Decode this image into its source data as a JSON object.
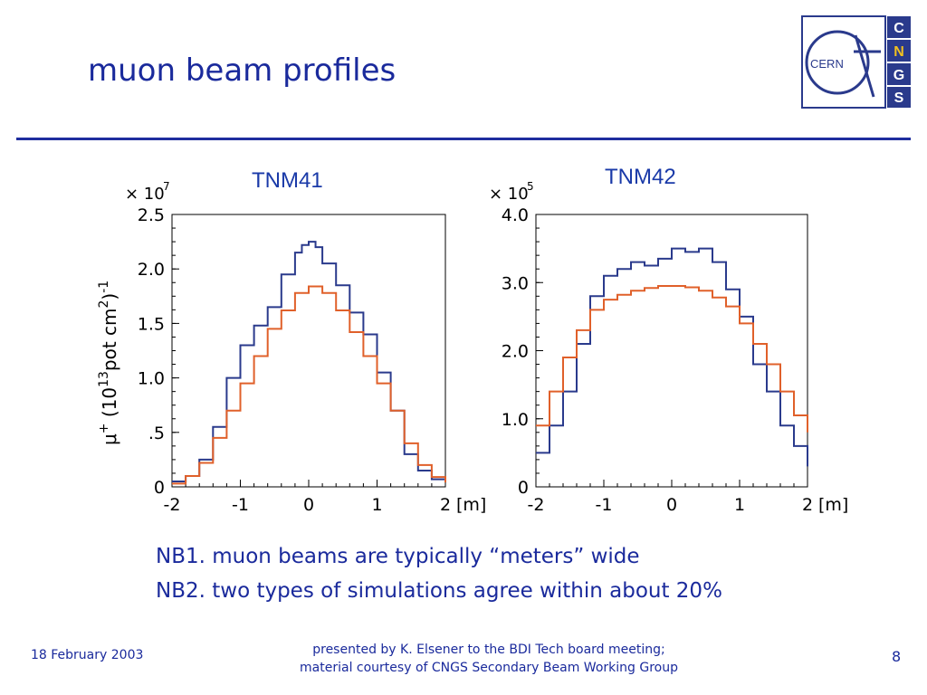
{
  "slide": {
    "title": "muon beam profiles",
    "notes": [
      "NB1.  muon beams are typically “meters” wide",
      "NB2. two types of simulations agree within about 20%"
    ],
    "footer_date": "18 February 2003",
    "footer_center_line1": "presented by K. Elsener to the BDI Tech board meeting;",
    "footer_center_line2": "material courtesy of CNGS Secondary Beam Working Group",
    "page_number": "8",
    "logo": {
      "text": "CERN",
      "letters": [
        "C",
        "N",
        "G",
        "S"
      ]
    },
    "colors": {
      "title": "#1a2a9c",
      "series_a": "#2a3a8c",
      "series_b": "#e0602a"
    }
  },
  "chart_data": [
    {
      "type": "line",
      "title": "TNM41",
      "multiplier_base": "× 10",
      "multiplier_exp": "7",
      "ylabel_prefix": "μ",
      "ylabel_sup_plus": "+",
      "ylabel_main": " (10",
      "ylabel_sup13": "13",
      "ylabel_rest": "pot cm",
      "ylabel_sup2": "2",
      "ylabel_end": ")",
      "ylabel_sup_m1": "-1",
      "xunit": "[m]",
      "xlim": [
        -2,
        2
      ],
      "ylim": [
        0,
        2.5
      ],
      "xticks": [
        "-2",
        "-1",
        "0",
        "1",
        "2"
      ],
      "yticks": [
        "0",
        ".5",
        "1.0",
        "1.5",
        "2.0",
        "2.5"
      ],
      "ytick_values": [
        0,
        0.5,
        1.0,
        1.5,
        2.0,
        2.5
      ],
      "xtick_values": [
        -2,
        -1,
        0,
        1,
        2
      ],
      "series": [
        {
          "style": "blue",
          "x": [
            -2.0,
            -1.8,
            -1.6,
            -1.4,
            -1.2,
            -1.0,
            -0.8,
            -0.6,
            -0.4,
            -0.2,
            -0.1,
            0.0,
            0.1,
            0.2,
            0.4,
            0.6,
            0.8,
            1.0,
            1.2,
            1.4,
            1.6,
            1.8,
            2.0
          ],
          "y": [
            0.05,
            0.1,
            0.25,
            0.55,
            1.0,
            1.3,
            1.48,
            1.65,
            1.95,
            2.15,
            2.22,
            2.25,
            2.2,
            2.05,
            1.85,
            1.6,
            1.4,
            1.05,
            0.7,
            0.3,
            0.15,
            0.07,
            0.05
          ]
        },
        {
          "style": "orange",
          "x": [
            -2.0,
            -1.8,
            -1.6,
            -1.4,
            -1.2,
            -1.0,
            -0.8,
            -0.6,
            -0.4,
            -0.2,
            0.0,
            0.2,
            0.4,
            0.6,
            0.8,
            1.0,
            1.2,
            1.4,
            1.6,
            1.8,
            2.0
          ],
          "y": [
            0.03,
            0.1,
            0.22,
            0.45,
            0.7,
            0.95,
            1.2,
            1.45,
            1.62,
            1.78,
            1.84,
            1.78,
            1.62,
            1.42,
            1.2,
            0.95,
            0.7,
            0.4,
            0.2,
            0.09,
            0.04
          ]
        }
      ]
    },
    {
      "type": "line",
      "title": "TNM42",
      "multiplier_base": "× 10",
      "multiplier_exp": "5",
      "xunit": "[m]",
      "xlim": [
        -2,
        2
      ],
      "ylim": [
        0,
        4.0
      ],
      "xticks": [
        "-2",
        "-1",
        "0",
        "1",
        "2"
      ],
      "yticks": [
        "0",
        "1.0",
        "2.0",
        "3.0",
        "4.0"
      ],
      "ytick_values": [
        0,
        1.0,
        2.0,
        3.0,
        4.0
      ],
      "xtick_values": [
        -2,
        -1,
        0,
        1,
        2
      ],
      "series": [
        {
          "style": "blue",
          "x": [
            -2.0,
            -1.8,
            -1.6,
            -1.4,
            -1.2,
            -1.0,
            -0.8,
            -0.6,
            -0.4,
            -0.2,
            0.0,
            0.2,
            0.4,
            0.6,
            0.8,
            1.0,
            1.2,
            1.4,
            1.6,
            1.8,
            2.0
          ],
          "y": [
            0.5,
            0.9,
            1.4,
            2.1,
            2.8,
            3.1,
            3.2,
            3.3,
            3.25,
            3.35,
            3.5,
            3.45,
            3.5,
            3.3,
            2.9,
            2.5,
            1.8,
            1.4,
            0.9,
            0.6,
            0.3
          ]
        },
        {
          "style": "orange",
          "x": [
            -2.0,
            -1.8,
            -1.6,
            -1.4,
            -1.2,
            -1.0,
            -0.8,
            -0.6,
            -0.4,
            -0.2,
            0.0,
            0.2,
            0.4,
            0.6,
            0.8,
            1.0,
            1.2,
            1.4,
            1.6,
            1.8,
            2.0
          ],
          "y": [
            0.9,
            1.4,
            1.9,
            2.3,
            2.6,
            2.75,
            2.82,
            2.88,
            2.92,
            2.95,
            2.95,
            2.93,
            2.88,
            2.78,
            2.65,
            2.4,
            2.1,
            1.8,
            1.4,
            1.05,
            0.8
          ]
        }
      ]
    }
  ]
}
